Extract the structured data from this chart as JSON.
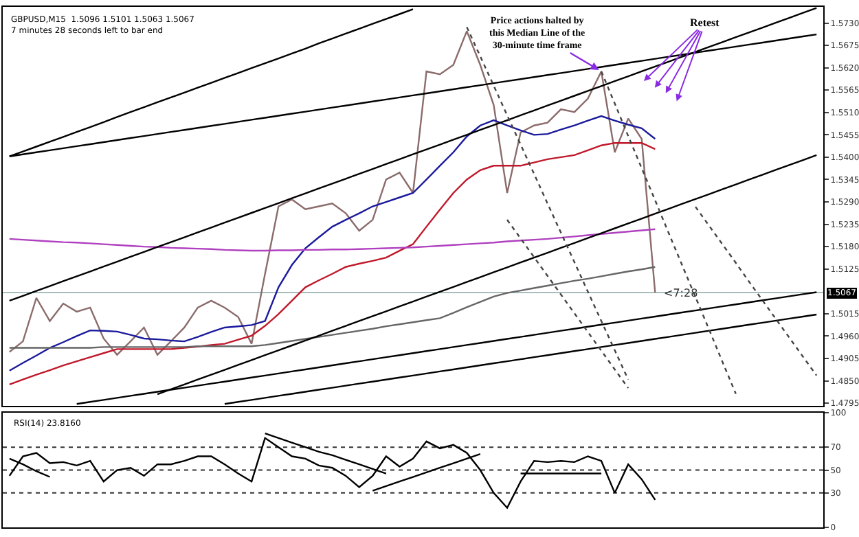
{
  "chart_data": [
    {
      "type": "line",
      "tick_labels": "y",
      "categories": [
        null,
        null,
        null,
        null,
        null,
        null,
        null,
        null,
        null,
        null,
        null,
        null,
        null,
        null,
        null,
        null,
        null,
        null,
        null,
        null,
        null,
        null,
        null,
        null,
        null,
        null,
        null,
        null,
        null,
        null,
        null,
        null,
        null,
        null,
        null,
        null,
        null,
        null,
        null,
        null,
        null,
        null,
        null,
        null,
        null,
        null,
        null,
        null,
        null,
        null,
        null,
        null,
        null,
        null,
        null,
        null,
        null,
        null,
        null,
        null,
        null
      ],
      "ylim": [
        1.4788,
        1.577
      ],
      "yticks": [
        1.4795,
        {
          "value": 1.485,
          "label": "1.4850"
        },
        1.4905,
        {
          "value": 1.496,
          "label": "1.4960"
        },
        1.5015,
        1.5125,
        {
          "value": 1.518,
          "label": "1.5180"
        },
        1.5235,
        {
          "value": 1.529,
          "label": "1.5290"
        },
        1.5345,
        {
          "value": 1.54,
          "label": "1.5400"
        },
        1.5455,
        {
          "value": 1.551,
          "label": "1.5510"
        },
        1.5565,
        {
          "value": 1.562,
          "label": "1.5620"
        },
        1.5675,
        {
          "value": 1.573,
          "label": "1.5730"
        }
      ],
      "annotations": [
        "GBPUSD,M15  1.5096 1.5101 1.5063 1.5067",
        "7 minutes 28 seconds left to bar end",
        "Retest",
        {
          "text": "Price actions halted by\nthis Median Line of the\n30-minute time frame",
          "y": 1.5611
        },
        {
          "text": "<7:28",
          "y": 1.5067
        }
      ],
      "ref_lines": [
        {
          "axis": "y",
          "value": 1.5067,
          "label": "1.5067",
          "color": "#a8bcbc"
        }
      ],
      "series": [
        {
          "color": "#8b6b6b",
          "values": [
            1.4921,
            1.4947,
            1.5054,
            1.4997,
            1.504,
            1.502,
            1.503,
            1.4954,
            1.4914,
            1.4947,
            1.4981,
            1.4914,
            1.4947,
            1.4981,
            1.503,
            1.5047,
            1.503,
            1.5007,
            1.4941,
            1.5113,
            1.5279,
            1.5296,
            1.5272,
            1.5279,
            1.5286,
            1.5262,
            1.5219,
            1.5246,
            1.5345,
            1.5362,
            1.5312,
            1.5611,
            1.5604,
            1.5627,
            1.571,
            1.5627,
            1.5528,
            1.5312,
            1.5461,
            1.5478,
            1.5485,
            1.5518,
            1.5511,
            1.5544,
            1.5611,
            1.5412,
            1.5495,
            1.5445,
            1.5067,
            null,
            null,
            null,
            null,
            null,
            null,
            null,
            null,
            null,
            null,
            null,
            null
          ]
        },
        {
          "color": "#1a1a9c",
          "values": [
            1.4875,
            1.4894,
            1.4912,
            1.4931,
            1.4945,
            1.496,
            1.4974,
            1.4973,
            1.4971,
            1.4963,
            1.4954,
            1.4952,
            1.4949,
            1.4947,
            1.4958,
            1.497,
            1.4981,
            1.4984,
            1.4987,
            1.4997,
            1.508,
            1.5135,
            1.5176,
            1.5203,
            1.5229,
            1.5246,
            1.5262,
            1.5279,
            1.529,
            1.5301,
            1.5312,
            1.5345,
            1.5379,
            1.5412,
            1.5451,
            1.5478,
            1.5491,
            1.5478,
            1.5466,
            1.5455,
            1.5457,
            1.5468,
            1.5478,
            1.549,
            1.5501,
            1.549,
            1.548,
            1.5471,
            1.5445,
            null,
            null,
            null,
            null,
            null,
            null,
            null,
            null,
            null,
            null,
            null,
            null
          ]
        },
        {
          "color": "#c0182a",
          "values": [
            1.4841,
            1.4853,
            1.4865,
            1.4876,
            1.4888,
            1.4898,
            1.4908,
            1.4918,
            1.4928,
            1.4928,
            1.4928,
            1.4928,
            1.4928,
            1.4931,
            1.4934,
            1.4938,
            1.4941,
            1.4951,
            1.4961,
            1.4985,
            1.5014,
            1.5047,
            1.508,
            1.5097,
            1.5113,
            1.513,
            1.5138,
            1.5145,
            1.5153,
            1.517,
            1.5186,
            1.5229,
            1.5271,
            1.5312,
            1.5345,
            1.5368,
            1.5379,
            1.5379,
            1.5379,
            1.5387,
            1.5395,
            1.54,
            1.5405,
            1.5417,
            1.5429,
            1.5435,
            1.5435,
            1.5435,
            1.542,
            null,
            null,
            null,
            null,
            null,
            null,
            null,
            null,
            null,
            null,
            null,
            null
          ]
        },
        {
          "color": "#b040c0",
          "values": [
            1.5199,
            1.5197,
            1.5195,
            1.5193,
            1.5191,
            1.519,
            1.5188,
            1.5186,
            1.5184,
            1.5182,
            1.518,
            1.5179,
            1.5177,
            1.5176,
            1.5175,
            1.5174,
            1.5172,
            1.5171,
            1.517,
            1.517,
            1.5171,
            1.5171,
            1.5172,
            1.5172,
            1.5173,
            1.5173,
            1.5174,
            1.5175,
            1.5176,
            1.5177,
            1.5178,
            1.518,
            1.5182,
            1.5184,
            1.5186,
            1.5188,
            1.519,
            1.5193,
            1.5195,
            1.5197,
            1.5199,
            1.5202,
            1.5205,
            1.5208,
            1.5211,
            1.5214,
            1.5217,
            1.522,
            1.5223,
            null,
            null,
            null,
            null,
            null,
            null,
            null,
            null,
            null,
            null,
            null,
            null
          ]
        },
        {
          "color": "#666666",
          "values": [
            1.4931,
            1.4931,
            1.4931,
            1.4931,
            1.4931,
            1.4931,
            1.4931,
            1.4933,
            1.4933,
            1.4933,
            1.4933,
            1.4933,
            1.4933,
            1.4933,
            1.4935,
            1.4935,
            1.4935,
            1.4935,
            1.4935,
            1.4938,
            1.4943,
            1.4948,
            1.4953,
            1.4958,
            1.4963,
            1.4968,
            1.4973,
            1.4978,
            1.4984,
            1.4989,
            1.4994,
            1.4999,
            1.5004,
            1.5017,
            1.5031,
            1.5044,
            1.5057,
            1.5066,
            1.5072,
            1.5078,
            1.5084,
            1.509,
            1.5096,
            1.5101,
            1.5107,
            1.5113,
            1.5119,
            1.5124,
            1.513,
            null,
            null,
            null,
            null,
            null,
            null,
            null,
            null,
            null,
            null,
            null,
            null
          ]
        },
        {
          "color": "#000000",
          "values": [
            1.5402,
            1.5407,
            1.5412,
            1.5417,
            1.5422,
            1.5427,
            1.5432,
            1.5437,
            1.5442,
            1.5447,
            1.5452,
            1.5457,
            1.5462,
            1.5467,
            1.5472,
            1.5477,
            1.5482,
            1.5487,
            1.5492,
            1.5497,
            1.5502,
            1.5507,
            1.5512,
            1.5517,
            1.5522,
            1.5527,
            1.5532,
            1.5537,
            1.5542,
            1.5547,
            1.5552,
            1.5557,
            1.5562,
            1.5567,
            1.5572,
            1.5577,
            1.5582,
            1.5587,
            1.5592,
            1.5597,
            1.5602,
            1.5607,
            1.5612,
            1.5617,
            1.5622,
            1.5627,
            1.5632,
            1.5637,
            1.5642,
            1.5647,
            1.5652,
            1.5657,
            1.5662,
            1.5667,
            1.5672,
            1.5677,
            1.5682,
            1.5687,
            1.5692,
            1.5697,
            1.5702
          ]
        },
        {
          "color": "#000000",
          "values": [
            1.5402,
            1.5414,
            1.5426,
            1.5438,
            1.545,
            1.5462,
            1.5474,
            1.5486,
            1.5499,
            1.5511,
            1.5523,
            1.5535,
            1.5547,
            1.5559,
            1.5571,
            1.5583,
            1.5595,
            1.5607,
            1.5619,
            1.5631,
            1.5643,
            1.5655,
            1.5667,
            1.568,
            1.5692,
            1.5704,
            1.5716,
            1.5728,
            1.574,
            1.5752,
            1.5764,
            null,
            null,
            null,
            null,
            null,
            null,
            null,
            null,
            null,
            null,
            null,
            null,
            null,
            null,
            null,
            null,
            null,
            null,
            null,
            null,
            null,
            null,
            null,
            null,
            null,
            null,
            null,
            null,
            null,
            null
          ]
        },
        {
          "color": "#000000",
          "values": [
            1.5047,
            1.5059,
            1.5071,
            1.5083,
            1.5095,
            1.5107,
            1.5119,
            1.5131,
            1.5143,
            1.5155,
            1.5167,
            1.5179,
            1.5191,
            1.5203,
            1.5215,
            1.5227,
            1.5239,
            1.5251,
            1.5263,
            1.5275,
            1.5287,
            1.5299,
            1.5311,
            1.5323,
            1.5335,
            1.5347,
            1.5359,
            1.5371,
            1.5383,
            1.5395,
            1.5407,
            1.5419,
            1.5431,
            1.5443,
            1.5455,
            1.5467,
            1.5479,
            1.5491,
            1.5503,
            1.5515,
            1.5527,
            1.5539,
            1.5551,
            1.5563,
            1.5575,
            1.5587,
            1.5599,
            1.5611,
            1.5623,
            1.5635,
            1.5647,
            1.5659,
            1.5671,
            1.5683,
            1.5695,
            1.5707,
            1.5719,
            1.5731,
            1.5743,
            1.5755,
            1.5767
          ]
        },
        {
          "color": "#000000",
          "values": [
            null,
            null,
            null,
            null,
            null,
            null,
            null,
            null,
            null,
            null,
            null,
            1.4817,
            1.4829,
            1.4841,
            1.4853,
            1.4865,
            1.4877,
            1.4889,
            1.4901,
            1.4913,
            1.4925,
            1.4937,
            1.4949,
            1.4961,
            1.4973,
            1.4985,
            1.4997,
            1.5009,
            1.5021,
            1.5033,
            1.5045,
            1.5057,
            1.5069,
            1.5081,
            1.5093,
            1.5105,
            1.5117,
            1.5129,
            1.5141,
            1.5153,
            1.5165,
            1.5177,
            1.5189,
            1.5201,
            1.5213,
            1.5225,
            1.5237,
            1.5249,
            1.5261,
            1.5273,
            1.5285,
            1.5297,
            1.5309,
            1.5321,
            1.5333,
            1.5345,
            1.5357,
            1.5369,
            1.5381,
            1.5393,
            1.5405
          ]
        },
        {
          "color": "#000000",
          "values": [
            null,
            null,
            null,
            null,
            null,
            1.4793,
            1.4798,
            1.4803,
            1.4808,
            1.4813,
            1.4818,
            1.4823,
            1.4828,
            1.4833,
            1.4838,
            1.4843,
            1.4848,
            1.4853,
            1.4858,
            1.4863,
            1.4868,
            1.4873,
            1.4878,
            1.4883,
            1.4888,
            1.4893,
            1.4898,
            1.4903,
            1.4908,
            1.4913,
            1.4918,
            1.4923,
            1.4928,
            1.4933,
            1.4938,
            1.4943,
            1.4948,
            1.4953,
            1.4958,
            1.4963,
            1.4968,
            1.4973,
            1.4978,
            1.4983,
            1.4988,
            1.4993,
            1.4998,
            1.5003,
            1.5008,
            1.5013,
            1.5018,
            1.5023,
            1.5028,
            1.5033,
            1.5038,
            1.5043,
            1.5048,
            1.5053,
            1.5058,
            1.5063,
            1.5068
          ]
        },
        {
          "color": "#000000",
          "values": [
            null,
            null,
            null,
            null,
            null,
            null,
            null,
            null,
            null,
            null,
            null,
            null,
            null,
            null,
            null,
            null,
            1.4793,
            1.4798,
            1.4803,
            1.4808,
            1.4813,
            1.4818,
            1.4823,
            1.4828,
            1.4833,
            1.4838,
            1.4843,
            1.4848,
            1.4853,
            1.4858,
            1.4863,
            1.4868,
            1.4873,
            1.4878,
            1.4883,
            1.4888,
            1.4893,
            1.4898,
            1.4903,
            1.4908,
            1.4913,
            1.4918,
            1.4923,
            1.4928,
            1.4933,
            1.4938,
            1.4943,
            1.4948,
            1.4953,
            1.4958,
            1.4963,
            1.4968,
            1.4973,
            1.4978,
            1.4983,
            1.4988,
            1.4993,
            1.4998,
            1.5003,
            1.5008,
            1.5013
          ]
        },
        {
          "color": "#444444",
          "line_style": "dotted",
          "values": [
            null,
            null,
            null,
            null,
            null,
            null,
            null,
            null,
            null,
            null,
            null,
            null,
            null,
            null,
            null,
            null,
            null,
            null,
            null,
            null,
            null,
            null,
            null,
            null,
            null,
            null,
            null,
            null,
            null,
            null,
            null,
            null,
            null,
            null,
            1.572,
            1.5648,
            1.5576,
            1.5503,
            1.5431,
            1.5359,
            1.5286,
            1.5214,
            1.5142,
            1.5069,
            1.4997,
            1.4925,
            1.4853,
            null,
            null,
            null,
            null,
            null,
            null,
            null,
            null,
            null,
            null,
            null,
            null,
            null,
            null
          ]
        },
        {
          "color": "#444444",
          "line_style": "dotted",
          "values": [
            null,
            null,
            null,
            null,
            null,
            null,
            null,
            null,
            null,
            null,
            null,
            null,
            null,
            null,
            null,
            null,
            null,
            null,
            null,
            null,
            null,
            null,
            null,
            null,
            null,
            null,
            null,
            null,
            null,
            null,
            null,
            null,
            null,
            null,
            null,
            null,
            null,
            null,
            null,
            null,
            null,
            null,
            null,
            null,
            1.5611,
            1.5532,
            1.5452,
            1.5373,
            1.5294,
            1.5214,
            1.5135,
            1.5056,
            1.4977,
            1.4897,
            1.4818,
            null,
            null,
            null,
            null,
            null,
            null
          ]
        },
        {
          "color": "#444444",
          "line_style": "dotted",
          "values": [
            null,
            null,
            null,
            null,
            null,
            null,
            null,
            null,
            null,
            null,
            null,
            null,
            null,
            null,
            null,
            null,
            null,
            null,
            null,
            null,
            null,
            null,
            null,
            null,
            null,
            null,
            null,
            null,
            null,
            null,
            null,
            null,
            null,
            null,
            null,
            null,
            null,
            null,
            null,
            null,
            null,
            null,
            null,
            null,
            null,
            null,
            null,
            null,
            null,
            null,
            null,
            1.5278,
            1.5232,
            1.5186,
            1.514,
            1.5093,
            1.5047,
            1.5001,
            1.4955,
            1.4909,
            1.4863
          ]
        },
        {
          "color": "#444444",
          "line_style": "dotted",
          "values": [
            null,
            null,
            null,
            null,
            null,
            null,
            null,
            null,
            null,
            null,
            null,
            null,
            null,
            null,
            null,
            null,
            null,
            null,
            null,
            null,
            null,
            null,
            null,
            null,
            null,
            null,
            null,
            null,
            null,
            null,
            null,
            null,
            null,
            null,
            null,
            null,
            null,
            1.5246,
            1.52,
            1.5154,
            1.5108,
            1.5062,
            1.5016,
            1.497,
            1.4924,
            1.4878,
            1.4832,
            null,
            null,
            null,
            null,
            null,
            null,
            null,
            null,
            null,
            null,
            null,
            null,
            null,
            null
          ]
        }
      ]
    },
    {
      "type": "line",
      "tick_labels": "y",
      "title": "RSI(14) 23.8160",
      "categories": [
        null,
        null,
        null,
        null,
        null,
        null,
        null,
        null,
        null,
        null,
        null,
        null,
        null,
        null,
        null,
        null,
        null,
        null,
        null,
        null,
        null,
        null,
        null,
        null,
        null,
        null,
        null,
        null,
        null,
        null,
        null,
        null,
        null,
        null,
        null,
        null,
        null,
        null,
        null,
        null,
        null,
        null,
        null,
        null,
        null,
        null,
        null,
        null,
        null,
        null,
        null,
        null,
        null,
        null,
        null,
        null,
        null,
        null,
        null,
        null,
        null
      ],
      "ylim": [
        0,
        100
      ],
      "yticks": [
        0,
        30,
        50,
        70,
        100
      ],
      "ref_lines": [
        {
          "axis": "y",
          "value": 30,
          "line_style": "dotted",
          "color": "#333333"
        },
        {
          "axis": "y",
          "value": 50,
          "line_style": "dotted",
          "color": "#333333"
        },
        {
          "axis": "y",
          "value": 70,
          "line_style": "dotted",
          "color": "#333333"
        }
      ],
      "series": [
        {
          "color": "#000000",
          "values": [
            45,
            62,
            65,
            56,
            57,
            54,
            58,
            40,
            50,
            52,
            45,
            55,
            55,
            58,
            62,
            62,
            55,
            47,
            40,
            78,
            70,
            62,
            60,
            54,
            52,
            45,
            35,
            45,
            62,
            53,
            60,
            75,
            69,
            72,
            65,
            50,
            30,
            17,
            40,
            58,
            57,
            58,
            57,
            62,
            58,
            30,
            55,
            42,
            24,
            null,
            null,
            null,
            null,
            null,
            null,
            null,
            null,
            null,
            null,
            null,
            null
          ]
        },
        {
          "color": "#000000",
          "values": [
            60,
            55,
            49,
            44,
            null,
            null,
            null,
            null,
            null,
            null,
            null,
            null,
            null,
            null,
            null,
            null,
            null,
            null,
            null,
            null,
            null,
            null,
            null,
            null,
            null,
            null,
            null,
            null,
            null,
            null,
            null,
            null,
            null,
            null,
            null,
            null,
            null,
            null,
            null,
            null,
            null,
            null,
            null,
            null,
            null,
            null,
            null,
            null,
            null,
            null,
            null,
            null,
            null,
            null,
            null,
            null,
            null,
            null,
            null,
            null,
            null
          ]
        },
        {
          "color": "#000000",
          "values": [
            null,
            null,
            null,
            null,
            null,
            null,
            null,
            null,
            null,
            null,
            null,
            null,
            null,
            null,
            null,
            null,
            null,
            null,
            null,
            82,
            78,
            74,
            70,
            66,
            63,
            59,
            55,
            51,
            47,
            null,
            null,
            null,
            null,
            null,
            null,
            null,
            null,
            null,
            null,
            null,
            null,
            null,
            null,
            null,
            null,
            null,
            null,
            null,
            null,
            null,
            null,
            null,
            null,
            null,
            null,
            null,
            null,
            null,
            null,
            null,
            null
          ]
        },
        {
          "color": "#000000",
          "values": [
            null,
            null,
            null,
            null,
            null,
            null,
            null,
            null,
            null,
            null,
            null,
            null,
            null,
            null,
            null,
            null,
            null,
            null,
            null,
            null,
            null,
            null,
            null,
            null,
            null,
            null,
            null,
            32,
            36,
            40,
            44,
            48,
            52,
            56,
            60,
            64,
            null,
            null,
            null,
            null,
            null,
            null,
            null,
            null,
            null,
            null,
            null,
            null,
            null,
            null,
            null,
            null,
            null,
            null,
            null,
            null,
            null,
            null,
            null,
            null,
            null
          ]
        },
        {
          "color": "#000000",
          "values": [
            null,
            null,
            null,
            null,
            null,
            null,
            null,
            null,
            null,
            null,
            null,
            null,
            null,
            null,
            null,
            null,
            null,
            null,
            null,
            null,
            null,
            null,
            null,
            null,
            null,
            null,
            null,
            null,
            null,
            null,
            null,
            null,
            null,
            null,
            null,
            null,
            null,
            null,
            47,
            47,
            47,
            47,
            47,
            47,
            47,
            null,
            null,
            null,
            null,
            null,
            null,
            null,
            null,
            null,
            null,
            null,
            null,
            null,
            null,
            null,
            null
          ]
        }
      ]
    }
  ]
}
